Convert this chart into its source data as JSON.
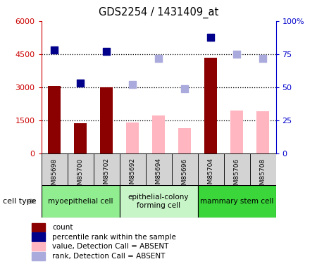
{
  "title": "GDS2254 / 1431409_at",
  "samples": [
    "GSM85698",
    "GSM85700",
    "GSM85702",
    "GSM85692",
    "GSM85694",
    "GSM85696",
    "GSM85704",
    "GSM85706",
    "GSM85708"
  ],
  "count_values": [
    3050,
    1370,
    3000,
    null,
    null,
    null,
    4350,
    null,
    null
  ],
  "rank_values": [
    78,
    53,
    77,
    null,
    null,
    null,
    88,
    null,
    null
  ],
  "absent_count_values": [
    null,
    null,
    null,
    1400,
    1700,
    1150,
    null,
    1950,
    1900
  ],
  "absent_rank_values": [
    null,
    null,
    null,
    52,
    72,
    49,
    null,
    75,
    72
  ],
  "groups": [
    {
      "label": "myoepithelial cell",
      "start": 0,
      "end": 3,
      "color": "#90EE90"
    },
    {
      "label": "epithelial-colony\nforming cell",
      "start": 3,
      "end": 6,
      "color": "#c8f5c8"
    },
    {
      "label": "mammary stem cell",
      "start": 6,
      "end": 9,
      "color": "#3ad63a"
    }
  ],
  "ylim_left": [
    0,
    6000
  ],
  "ylim_right": [
    0,
    100
  ],
  "yticks_left": [
    0,
    1500,
    3000,
    4500,
    6000
  ],
  "ytick_labels_left": [
    "0",
    "1500",
    "3000",
    "4500",
    "6000"
  ],
  "yticks_right": [
    0,
    25,
    50,
    75,
    100
  ],
  "ytick_labels_right": [
    "0",
    "25",
    "50",
    "75",
    "100%"
  ],
  "bar_width": 0.5,
  "marker_size": 55,
  "bar_color_present": "#8B0000",
  "bar_color_absent": "#FFB6C1",
  "dot_color_present": "#00008B",
  "dot_color_absent": "#AAAADD",
  "plot_bg": "#FFFFFF",
  "left_axis_color": "#CC0000",
  "right_axis_color": "#0000CC",
  "dotted_line_color": "black",
  "cell_type_label": "cell type",
  "legend_items": [
    {
      "label": "count",
      "color": "#8B0000",
      "type": "square"
    },
    {
      "label": "percentile rank within the sample",
      "color": "#00008B",
      "type": "square"
    },
    {
      "label": "value, Detection Call = ABSENT",
      "color": "#FFB6C1",
      "type": "square"
    },
    {
      "label": "rank, Detection Call = ABSENT",
      "color": "#AAAADD",
      "type": "square"
    }
  ]
}
